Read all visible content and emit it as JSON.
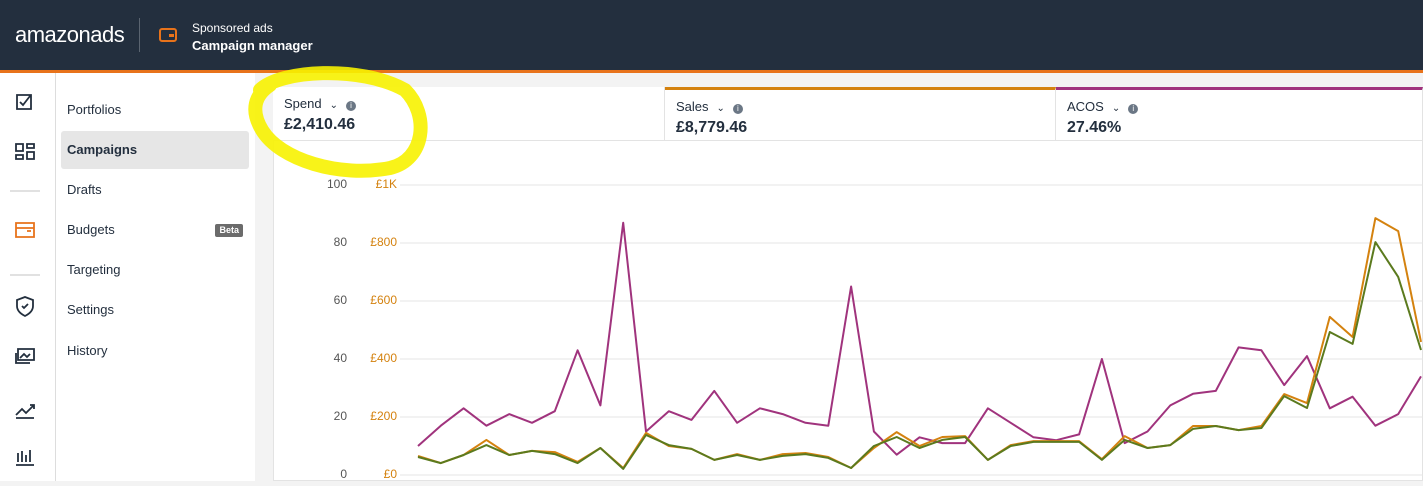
{
  "header": {
    "brand": "amazon",
    "brand_suffix": "ads",
    "section": "Sponsored ads",
    "page": "Campaign manager"
  },
  "sidebar": {
    "items": [
      {
        "label": "Portfolios"
      },
      {
        "label": "Campaigns"
      },
      {
        "label": "Drafts"
      },
      {
        "label": "Budgets",
        "badge": "Beta"
      },
      {
        "label": "Targeting"
      },
      {
        "label": "Settings"
      },
      {
        "label": "History"
      }
    ]
  },
  "chart_data": {
    "type": "line",
    "ylim": [
      0,
      100
    ],
    "yticks": [
      0,
      20,
      40,
      60,
      80,
      100
    ],
    "y2lim": [
      0,
      1000
    ],
    "y2ticks": [
      {
        "value": 0,
        "label": "£0"
      },
      {
        "value": 200,
        "label": "£200"
      },
      {
        "value": 400,
        "label": "£400"
      },
      {
        "value": 600,
        "label": "£600"
      },
      {
        "value": 800,
        "label": "£800"
      },
      {
        "value": 1000,
        "label": "£1K"
      }
    ],
    "grid": true,
    "series": [
      {
        "name": "Spend",
        "total": "£2,410.46",
        "color": "#5b7a1e",
        "axis": "y2",
        "values": [
          62,
          41,
          69,
          103,
          69,
          83,
          72,
          41,
          93,
          21,
          138,
          103,
          90,
          52,
          69,
          52,
          66,
          72,
          59,
          24,
          100,
          131,
          93,
          121,
          131,
          52,
          100,
          114,
          114,
          114,
          52,
          121,
          93,
          103,
          159,
          169,
          155,
          162,
          272,
          231,
          493,
          452,
          803,
          683,
          431
        ]
      },
      {
        "name": "Sales",
        "total": "£8,779.46",
        "color": "#d4820f",
        "axis": "y2",
        "values": [
          66,
          41,
          69,
          121,
          69,
          83,
          79,
          45,
          93,
          24,
          145,
          100,
          90,
          52,
          72,
          52,
          72,
          76,
          62,
          24,
          93,
          148,
          100,
          131,
          134,
          52,
          103,
          117,
          117,
          117,
          55,
          134,
          93,
          103,
          169,
          169,
          155,
          169,
          279,
          248,
          545,
          476,
          886,
          841,
          459
        ]
      },
      {
        "name": "ACOS",
        "total": "27.46%",
        "color": "#a0337d",
        "values": [
          10,
          17,
          23,
          17,
          21,
          18,
          22,
          43,
          24,
          87,
          15,
          22,
          19,
          29,
          18,
          23,
          21,
          18,
          17,
          65,
          15,
          7,
          13,
          11,
          11,
          23,
          18,
          13,
          12,
          14,
          40,
          11,
          15,
          24,
          28,
          29,
          44,
          43,
          31,
          41,
          23,
          27,
          17,
          21,
          34
        ]
      }
    ]
  }
}
